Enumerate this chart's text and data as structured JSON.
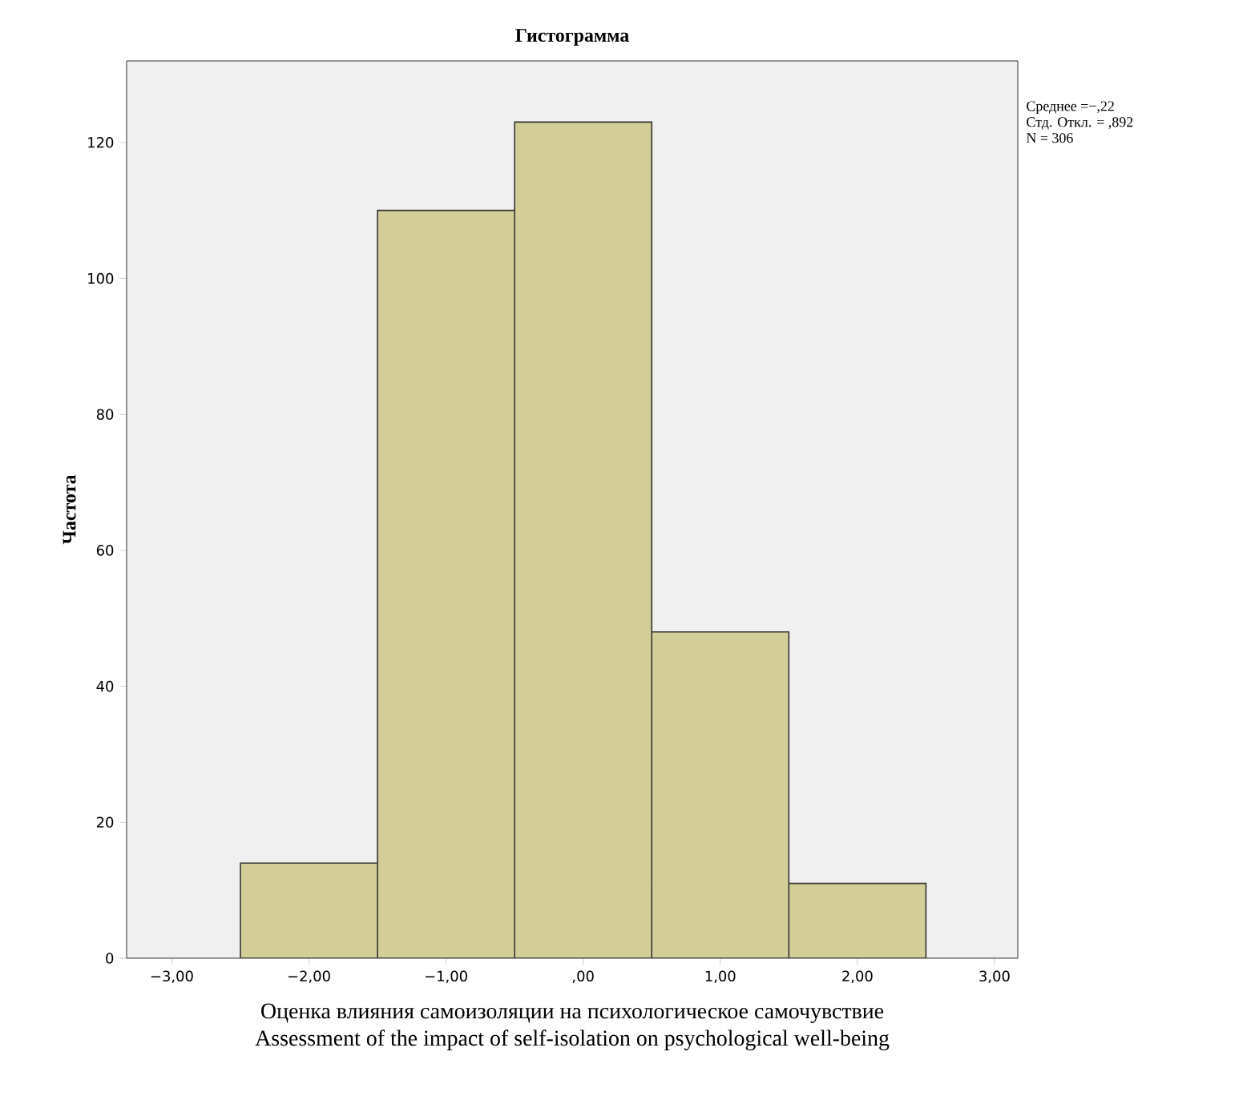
{
  "chart_data": {
    "type": "histogram",
    "title": "Гистограмма",
    "ylabel": "Частота",
    "xlabel": "Оценка влияния самоизоляции на психологическое самочувствие\nAssessment of the impact of self-isolation on psychological well-being",
    "bins": [
      -2.5,
      -1.5,
      -0.5,
      0.5,
      1.5,
      2.5
    ],
    "values": [
      14,
      110,
      123,
      48,
      11
    ],
    "color": "#d3ce97",
    "xlim": [
      -3.33,
      3.17
    ],
    "ylim": [
      0,
      132
    ],
    "xticks": [
      {
        "value": -3,
        "label": "−3,00"
      },
      {
        "value": -2,
        "label": "−2,00"
      },
      {
        "value": -1,
        "label": "−1,00"
      },
      {
        "value": 0,
        "label": ",00"
      },
      {
        "value": 1,
        "label": "1,00"
      },
      {
        "value": 2,
        "label": "2,00"
      },
      {
        "value": 3,
        "label": "3,00"
      }
    ],
    "yticks": [
      0,
      20,
      40,
      60,
      80,
      100,
      120
    ],
    "annotations": [
      "Среднее =−,22",
      "Стд. Откл. = ,892",
      "N = 306"
    ]
  }
}
